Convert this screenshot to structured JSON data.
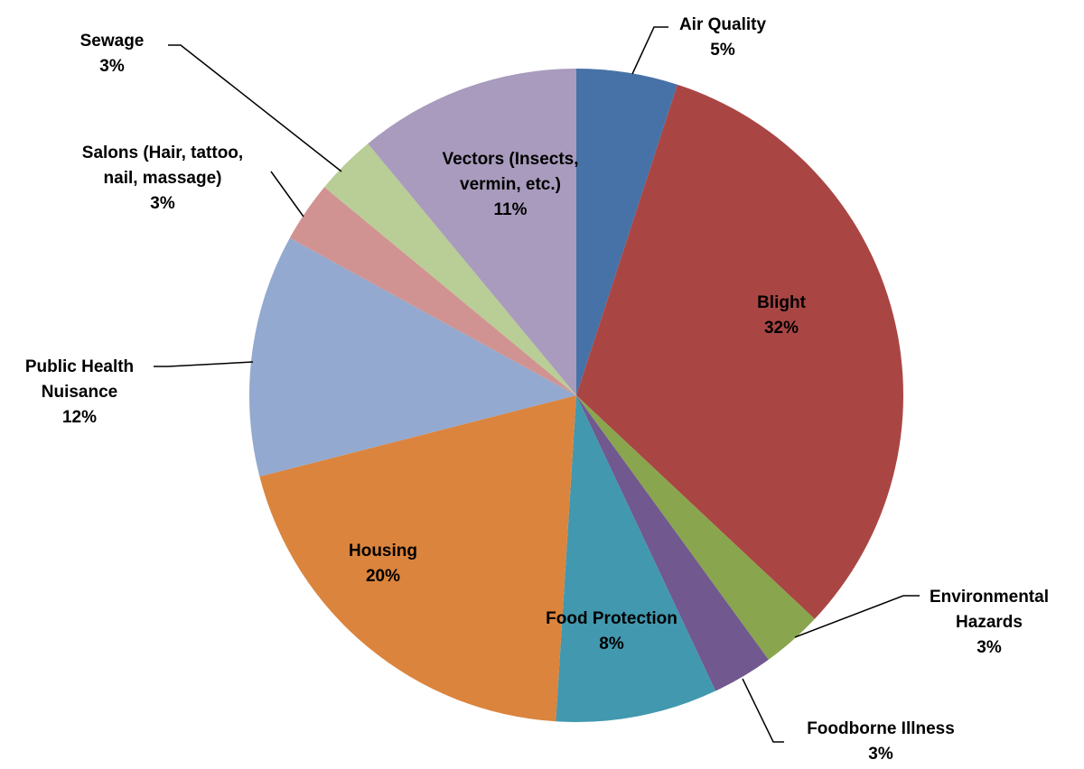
{
  "chart_data": {
    "type": "pie",
    "categories": [
      "Air Quality",
      "Blight",
      "Environmental Hazards",
      "Foodborne Illness",
      "Food Protection",
      "Housing",
      "Public Health Nuisance",
      "Salons (Hair, tattoo, nail, massage)",
      "Sewage",
      "Vectors (Insects, vermin, etc.)"
    ],
    "values": [
      5,
      32,
      3,
      3,
      8,
      20,
      12,
      3,
      3,
      11
    ],
    "value_labels": [
      "5%",
      "32%",
      "3%",
      "3%",
      "8%",
      "20%",
      "12%",
      "3%",
      "3%",
      "11%"
    ],
    "colors": [
      "#4672a8",
      "#a94644",
      "#89a54e",
      "#71588f",
      "#4198af",
      "#db843d",
      "#93a9cf",
      "#d19392",
      "#b9cd96",
      "#a99bbd"
    ]
  }
}
